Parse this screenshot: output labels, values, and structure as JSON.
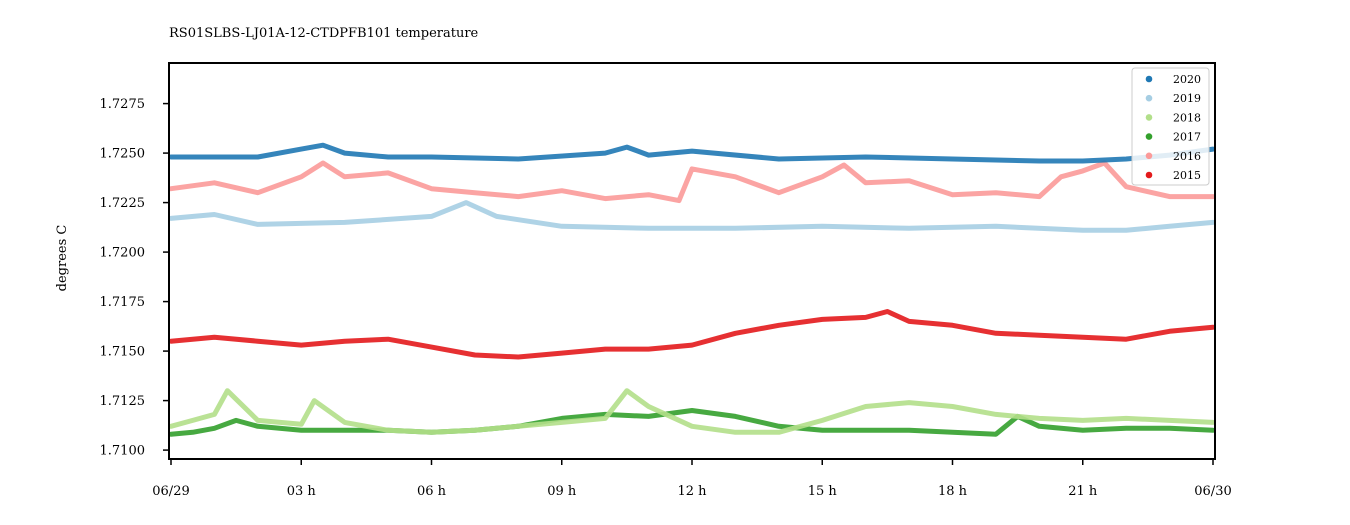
{
  "chart_data": {
    "type": "scatter",
    "title": "RS01SLBS-LJ01A-12-CTDPFB101 temperature",
    "xlabel": "",
    "ylabel": "degrees C",
    "xlim": [
      0,
      24
    ],
    "ylim": [
      1.70955,
      1.72955
    ],
    "x_ticks": [
      {
        "value": 0,
        "label": "06/29"
      },
      {
        "value": 3,
        "label": "03 h"
      },
      {
        "value": 6,
        "label": "06 h"
      },
      {
        "value": 9,
        "label": "09 h"
      },
      {
        "value": 12,
        "label": "12 h"
      },
      {
        "value": 15,
        "label": "15 h"
      },
      {
        "value": 18,
        "label": "18 h"
      },
      {
        "value": 21,
        "label": "21 h"
      },
      {
        "value": 24,
        "label": "06/30"
      }
    ],
    "y_ticks": [
      1.71,
      1.7125,
      1.715,
      1.7175,
      1.72,
      1.7225,
      1.725,
      1.7275
    ],
    "y_tick_labels": [
      "1.7100",
      "1.7125",
      "1.7150",
      "1.7175",
      "1.7200",
      "1.7225",
      "1.7250",
      "1.7275"
    ],
    "grid": false,
    "legend_position": "top-right",
    "series": [
      {
        "name": "2020",
        "color": "#1f78b4",
        "x": [
          0,
          2,
          3,
          3.5,
          4,
          5,
          6,
          8,
          10,
          10.5,
          11,
          12,
          14,
          16,
          18,
          20,
          21,
          22,
          23,
          24
        ],
        "y": [
          1.7248,
          1.7248,
          1.7252,
          1.7254,
          1.725,
          1.7248,
          1.7248,
          1.7247,
          1.725,
          1.7253,
          1.7249,
          1.7251,
          1.7247,
          1.7248,
          1.7247,
          1.7246,
          1.7246,
          1.7247,
          1.7249,
          1.7252
        ]
      },
      {
        "name": "2019",
        "color": "#a6cee3",
        "x": [
          0,
          1,
          2,
          4,
          6,
          6.8,
          7.5,
          9,
          11,
          13,
          15,
          17,
          19,
          21,
          22,
          23,
          24
        ],
        "y": [
          1.7217,
          1.7219,
          1.7214,
          1.7215,
          1.7218,
          1.7225,
          1.7218,
          1.7213,
          1.7212,
          1.7212,
          1.7213,
          1.7212,
          1.7213,
          1.7211,
          1.7211,
          1.7213,
          1.7215
        ]
      },
      {
        "name": "2018",
        "color": "#b2df8a",
        "x": [
          0,
          0.5,
          1,
          1.3,
          2,
          3,
          3.3,
          4,
          5,
          6,
          7,
          8,
          9,
          10,
          10.5,
          11,
          12,
          13,
          14,
          15,
          16,
          17,
          18,
          19,
          20,
          21,
          22,
          23,
          24
        ],
        "y": [
          1.7112,
          1.7115,
          1.7118,
          1.713,
          1.7115,
          1.7113,
          1.7125,
          1.7114,
          1.711,
          1.7109,
          1.711,
          1.7112,
          1.7114,
          1.7116,
          1.713,
          1.7122,
          1.7112,
          1.7109,
          1.7109,
          1.7115,
          1.7122,
          1.7124,
          1.7122,
          1.7118,
          1.7116,
          1.7115,
          1.7116,
          1.7115,
          1.7114
        ]
      },
      {
        "name": "2017",
        "color": "#33a02c",
        "x": [
          0,
          0.5,
          1,
          1.5,
          2,
          3,
          4,
          5,
          6,
          7,
          8,
          9,
          10,
          11,
          12,
          13,
          14,
          15,
          16,
          17,
          18,
          19,
          19.5,
          20,
          21,
          22,
          23,
          24
        ],
        "y": [
          1.7108,
          1.7109,
          1.7111,
          1.7115,
          1.7112,
          1.711,
          1.711,
          1.711,
          1.7109,
          1.711,
          1.7112,
          1.7116,
          1.7118,
          1.7117,
          1.712,
          1.7117,
          1.7112,
          1.711,
          1.711,
          1.711,
          1.7109,
          1.7108,
          1.7117,
          1.7112,
          1.711,
          1.7111,
          1.7111,
          1.711
        ]
      },
      {
        "name": "2016",
        "color": "#fb9a99",
        "x": [
          0,
          1,
          2,
          3,
          3.5,
          4,
          5,
          6,
          7,
          8,
          9,
          10,
          11,
          11.7,
          12,
          13,
          14,
          15,
          15.5,
          16,
          17,
          18,
          19,
          20,
          20.5,
          21,
          21.5,
          22,
          23,
          24
        ],
        "y": [
          1.7232,
          1.7235,
          1.723,
          1.7238,
          1.7245,
          1.7238,
          1.724,
          1.7232,
          1.723,
          1.7228,
          1.7231,
          1.7227,
          1.7229,
          1.7226,
          1.7242,
          1.7238,
          1.723,
          1.7238,
          1.7244,
          1.7235,
          1.7236,
          1.7229,
          1.723,
          1.7228,
          1.7238,
          1.7241,
          1.7245,
          1.7233,
          1.7228,
          1.7228
        ]
      },
      {
        "name": "2015",
        "color": "#e31a1c",
        "x": [
          0,
          1,
          2,
          3,
          4,
          5,
          6,
          7,
          8,
          9,
          10,
          11,
          12,
          13,
          14,
          15,
          16,
          16.5,
          17,
          18,
          19,
          20,
          21,
          22,
          23,
          24
        ],
        "y": [
          1.7155,
          1.7157,
          1.7155,
          1.7153,
          1.7155,
          1.7156,
          1.7152,
          1.7148,
          1.7147,
          1.7149,
          1.7151,
          1.7151,
          1.7153,
          1.7159,
          1.7163,
          1.7166,
          1.7167,
          1.717,
          1.7165,
          1.7163,
          1.7159,
          1.7158,
          1.7157,
          1.7156,
          1.716,
          1.7162
        ]
      }
    ]
  }
}
